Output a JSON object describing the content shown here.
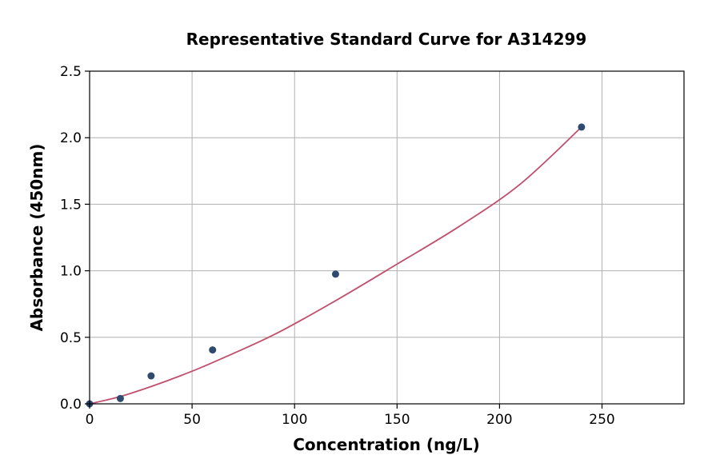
{
  "chart_data": {
    "type": "scatter",
    "title": "Representative Standard Curve for A314299",
    "xlabel": "Concentration (ng/L)",
    "ylabel": "Absorbance (450nm)",
    "xlim": [
      0,
      290
    ],
    "ylim": [
      0,
      2.5
    ],
    "xticks": [
      0,
      50,
      100,
      150,
      200,
      250
    ],
    "yticks": [
      0.0,
      0.5,
      1.0,
      1.5,
      2.0,
      2.5
    ],
    "xtick_labels": [
      "0",
      "50",
      "100",
      "150",
      "200",
      "250"
    ],
    "ytick_labels": [
      "0.0",
      "0.5",
      "1.0",
      "1.5",
      "2.0",
      "2.5"
    ],
    "grid": true,
    "series": [
      {
        "kind": "points",
        "color": "#2e4a6e",
        "x": [
          0,
          15,
          30,
          60,
          120,
          240
        ],
        "y": [
          0.0,
          0.04,
          0.21,
          0.405,
          0.975,
          2.08
        ]
      },
      {
        "kind": "fit-curve",
        "color": "#c0506e",
        "x": [
          0,
          15,
          30,
          45,
          60,
          90,
          120,
          150,
          180,
          210,
          240
        ],
        "y": [
          0.0,
          0.055,
          0.13,
          0.215,
          0.31,
          0.52,
          0.775,
          1.05,
          1.33,
          1.65,
          2.08
        ]
      }
    ]
  }
}
